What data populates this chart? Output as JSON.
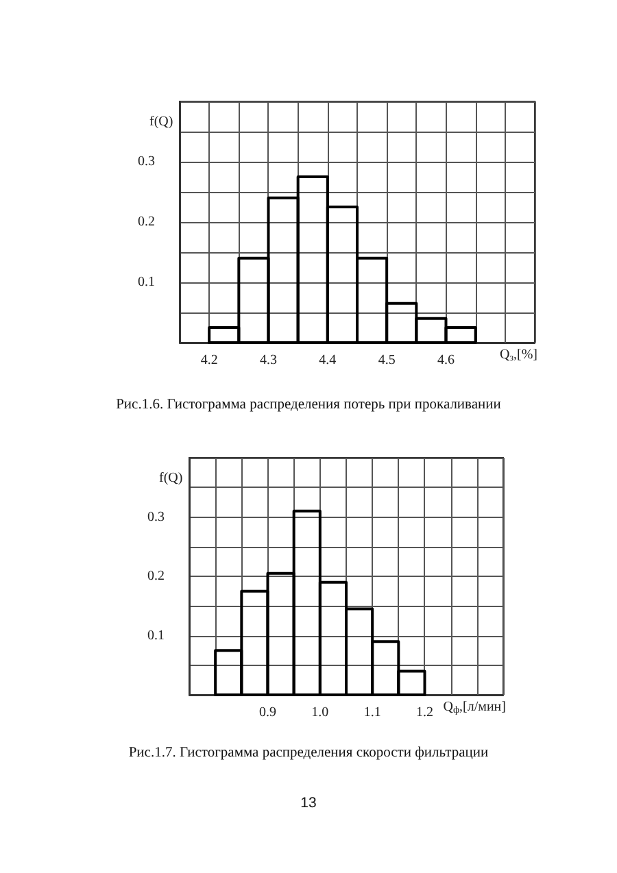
{
  "chart_data": [
    {
      "type": "histogram",
      "ylabel": "f(Q)",
      "xlabel": "Q$_{з}$,[%]",
      "annotations": [
        "Рис.1.6. Гистограмма распределения потерь при прокаливании"
      ],
      "color": "#000000",
      "grid": true,
      "bins": [
        4.2,
        4.25,
        4.3,
        4.35,
        4.4,
        4.45,
        4.5,
        4.55,
        4.6,
        4.65
      ],
      "values": [
        0.025,
        0.14,
        0.24,
        0.275,
        0.225,
        0.14,
        0.065,
        0.04,
        0.025
      ],
      "xlim": [
        4.15,
        4.75
      ],
      "xticks": [
        {
          "value": 4.15,
          "label": null
        },
        4.2,
        {
          "value": 4.25,
          "label": null
        },
        4.3,
        {
          "value": 4.35,
          "label": null
        },
        4.4,
        {
          "value": 4.45,
          "label": null
        },
        4.5,
        {
          "value": 4.55,
          "label": null
        },
        4.6,
        {
          "value": 4.65,
          "label": null
        },
        {
          "value": 4.7,
          "label": null
        },
        {
          "value": 4.75,
          "label": null
        }
      ],
      "ylim": [
        0,
        0.4
      ],
      "yticks": [
        {
          "value": 0,
          "label": null
        },
        {
          "value": 0.05,
          "label": null
        },
        0.1,
        {
          "value": 0.15,
          "label": null
        },
        0.2,
        {
          "value": 0.25,
          "label": null
        },
        0.3,
        {
          "value": 0.35,
          "label": null
        },
        {
          "value": 0.4,
          "label": null
        }
      ]
    },
    {
      "type": "histogram",
      "ylabel": "f(Q)",
      "xlabel": "Q$_{ф}$,[л/мин]",
      "annotations": [
        "Рис.1.7. Гистограмма распределения скорости фильтрации",
        "13"
      ],
      "color": "#000000",
      "grid": true,
      "bins": [
        0.8,
        0.85,
        0.9,
        0.95,
        1.0,
        1.05,
        1.1,
        1.15,
        1.2
      ],
      "values": [
        0.075,
        0.175,
        0.205,
        0.31,
        0.19,
        0.145,
        0.09,
        0.04
      ],
      "xlim": [
        0.75,
        1.35
      ],
      "xticks": [
        {
          "value": 0.75,
          "label": null
        },
        {
          "value": 0.8,
          "label": null
        },
        {
          "value": 0.85,
          "label": null
        },
        0.9,
        {
          "value": 0.95,
          "label": null
        },
        {
          "value": 1.0,
          "label": "1.0"
        },
        {
          "value": 1.05,
          "label": null
        },
        1.1,
        {
          "value": 1.15,
          "label": null
        },
        1.2,
        {
          "value": 1.25,
          "label": null
        },
        {
          "value": 1.3,
          "label": null
        },
        {
          "value": 1.35,
          "label": null
        }
      ],
      "ylim": [
        0,
        0.4
      ],
      "yticks": [
        {
          "value": 0,
          "label": null
        },
        {
          "value": 0.05,
          "label": null
        },
        0.1,
        {
          "value": 0.15,
          "label": null
        },
        0.2,
        {
          "value": 0.25,
          "label": null
        },
        0.3,
        {
          "value": 0.35,
          "label": null
        },
        {
          "value": 0.4,
          "label": null
        }
      ]
    }
  ]
}
